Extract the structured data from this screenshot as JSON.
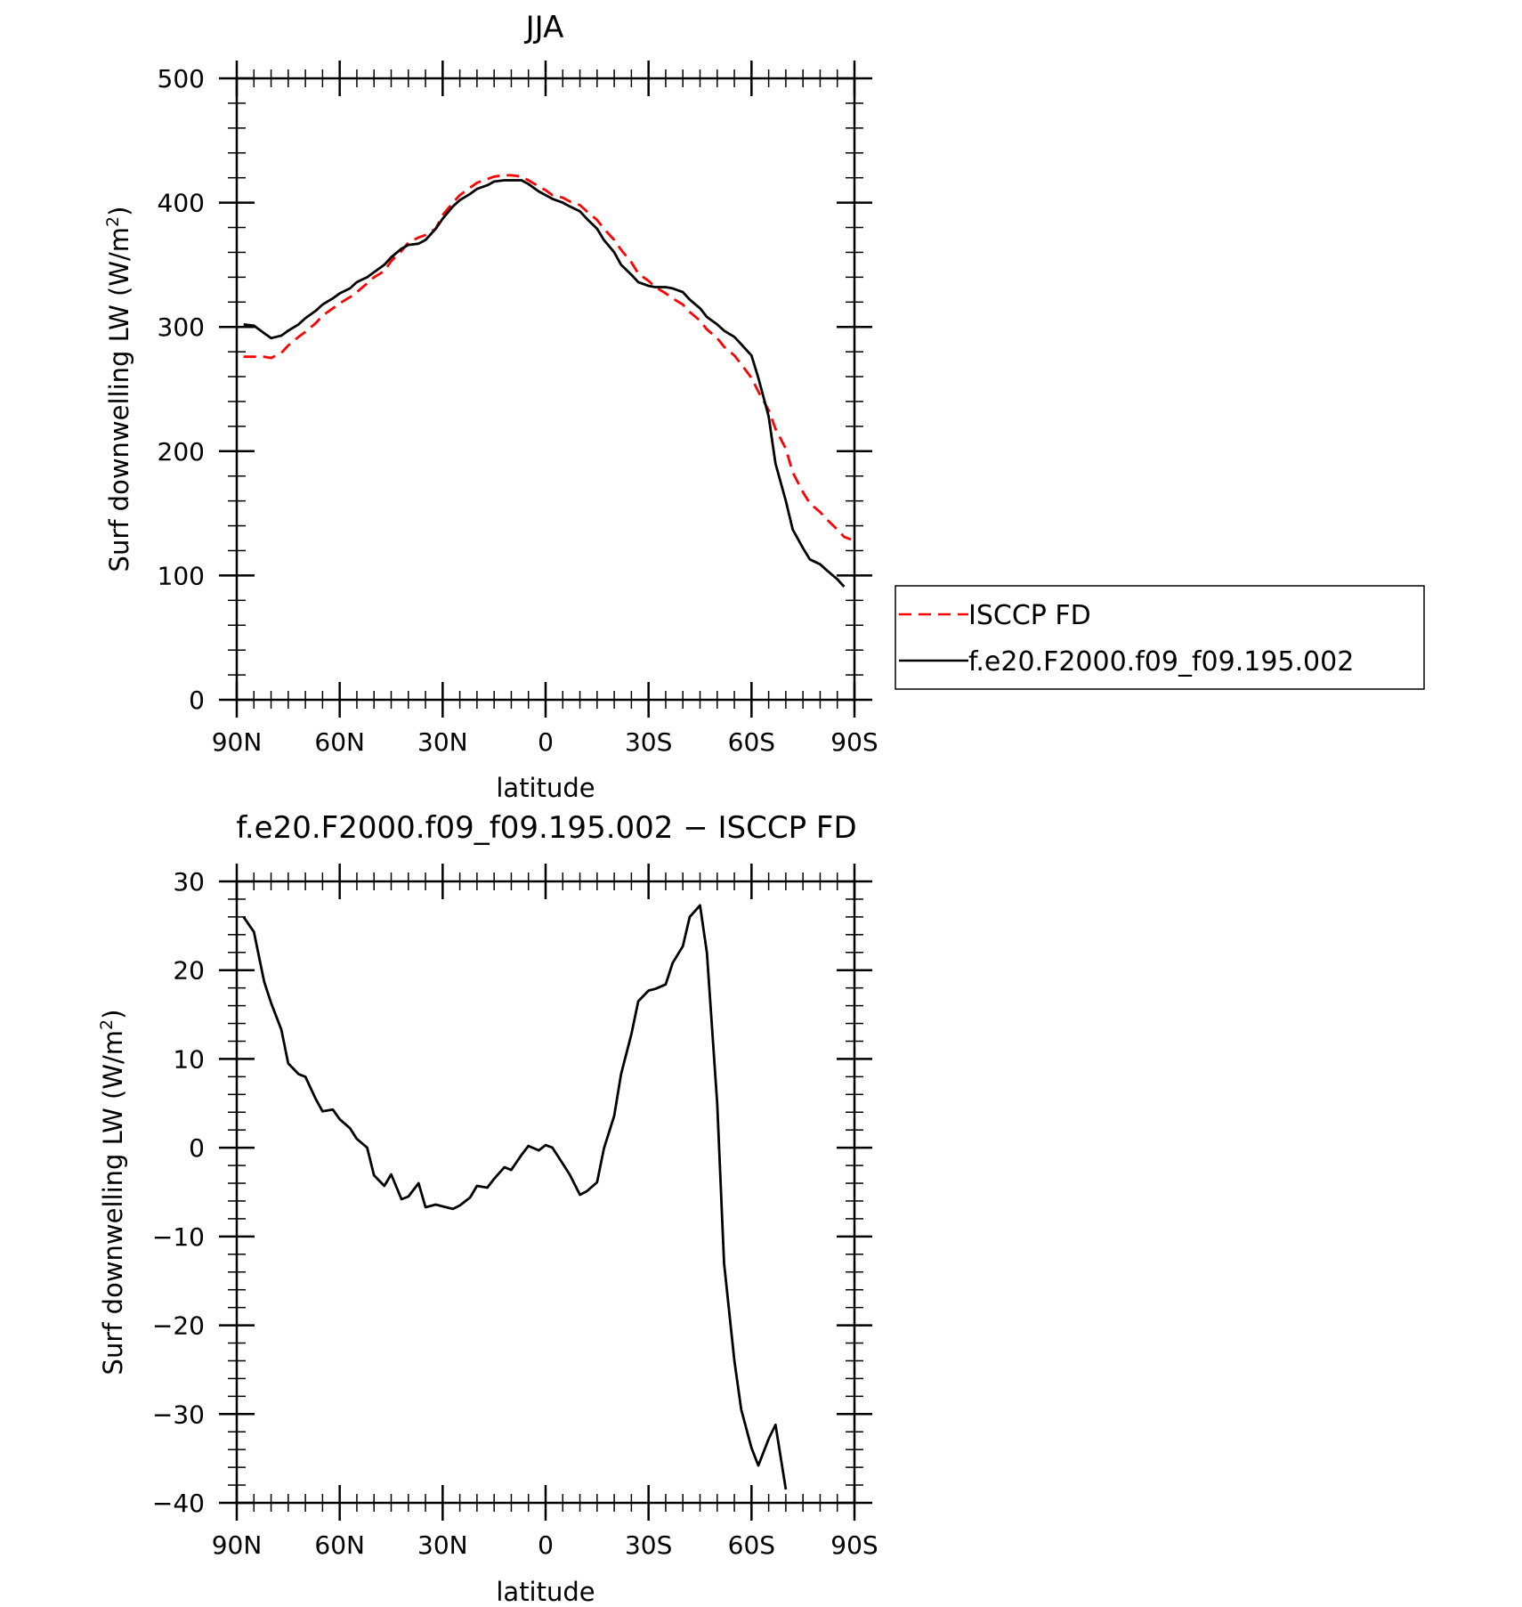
{
  "chart_data": [
    {
      "type": "line",
      "title": "JJA",
      "xlabel": "latitude",
      "ylabel": "Surf downwelling LW (W/m",
      "ylabel_sup": "2",
      "ylabel_close": ")",
      "xlim": [
        90,
        -90
      ],
      "ylim": [
        0,
        500
      ],
      "xticks": [
        90,
        60,
        30,
        0,
        -30,
        -60,
        -90
      ],
      "xtick_labels": [
        "90N",
        "60N",
        "30N",
        "0",
        "30S",
        "60S",
        "90S"
      ],
      "yticks": [
        0,
        100,
        200,
        300,
        400,
        500
      ],
      "ytick_labels": [
        "0",
        "100",
        "200",
        "300",
        "400",
        "500"
      ],
      "grid": false,
      "legend": "right",
      "series": [
        {
          "name": "ISCCP FD",
          "color": "#ff0000",
          "dash": "dashed",
          "points": [
            [
              88,
              276
            ],
            [
              85,
              276
            ],
            [
              82,
              276
            ],
            [
              80,
              275
            ],
            [
              77,
              279
            ],
            [
              75,
              285
            ],
            [
              72,
              292
            ],
            [
              70,
              296
            ],
            [
              67,
              303
            ],
            [
              65,
              309
            ],
            [
              62,
              315
            ],
            [
              60,
              319
            ],
            [
              57,
              324
            ],
            [
              55,
              328
            ],
            [
              52,
              335
            ],
            [
              50,
              340
            ],
            [
              47,
              345
            ],
            [
              45,
              353
            ],
            [
              42,
              361
            ],
            [
              40,
              368
            ],
            [
              37,
              372
            ],
            [
              35,
              374
            ],
            [
              32,
              379
            ],
            [
              30,
              390
            ],
            [
              27,
              400
            ],
            [
              25,
              406
            ],
            [
              22,
              412
            ],
            [
              20,
              416
            ],
            [
              17,
              419
            ],
            [
              15,
              421
            ],
            [
              12,
              422
            ],
            [
              10,
              422
            ],
            [
              7,
              421
            ],
            [
              5,
              418
            ],
            [
              2,
              413
            ],
            [
              0,
              410
            ],
            [
              -2,
              406
            ],
            [
              -5,
              404
            ],
            [
              -7,
              401
            ],
            [
              -10,
              398
            ],
            [
              -12,
              393
            ],
            [
              -15,
              386
            ],
            [
              -17,
              379
            ],
            [
              -20,
              370
            ],
            [
              -22,
              362
            ],
            [
              -25,
              352
            ],
            [
              -27,
              343
            ],
            [
              -30,
              337
            ],
            [
              -32,
              332
            ],
            [
              -35,
              327
            ],
            [
              -37,
              323
            ],
            [
              -40,
              318
            ],
            [
              -42,
              312
            ],
            [
              -45,
              305
            ],
            [
              -47,
              298
            ],
            [
              -50,
              291
            ],
            [
              -52,
              284
            ],
            [
              -55,
              277
            ],
            [
              -57,
              270
            ],
            [
              -60,
              259
            ],
            [
              -62,
              248
            ],
            [
              -65,
              233
            ],
            [
              -67,
              218
            ],
            [
              -70,
              202
            ],
            [
              -72,
              183
            ],
            [
              -75,
              167
            ],
            [
              -77,
              158
            ],
            [
              -80,
              151
            ],
            [
              -82,
              145
            ],
            [
              -85,
              137
            ],
            [
              -87,
              131
            ],
            [
              -89,
              129
            ]
          ]
        },
        {
          "name": "f.e20.F2000.f09_f09.195.002",
          "color": "#000000",
          "dash": "solid",
          "points": [
            [
              88,
              302
            ],
            [
              85,
              301
            ],
            [
              82,
              295
            ],
            [
              80,
              291
            ],
            [
              77,
              293
            ],
            [
              75,
              297
            ],
            [
              72,
              302
            ],
            [
              70,
              307
            ],
            [
              67,
              313
            ],
            [
              65,
              318
            ],
            [
              62,
              323
            ],
            [
              60,
              327
            ],
            [
              57,
              331
            ],
            [
              55,
              336
            ],
            [
              52,
              340
            ],
            [
              50,
              344
            ],
            [
              47,
              350
            ],
            [
              45,
              356
            ],
            [
              42,
              363
            ],
            [
              40,
              366
            ],
            [
              37,
              367
            ],
            [
              35,
              370
            ],
            [
              32,
              379
            ],
            [
              30,
              387
            ],
            [
              27,
              397
            ],
            [
              25,
              402
            ],
            [
              22,
              407
            ],
            [
              20,
              411
            ],
            [
              17,
              414
            ],
            [
              15,
              417
            ],
            [
              12,
              418
            ],
            [
              10,
              418
            ],
            [
              7,
              418
            ],
            [
              5,
              415
            ],
            [
              2,
              409
            ],
            [
              0,
              406
            ],
            [
              -2,
              403
            ],
            [
              -5,
              400
            ],
            [
              -7,
              397
            ],
            [
              -10,
              393
            ],
            [
              -12,
              387
            ],
            [
              -15,
              379
            ],
            [
              -17,
              370
            ],
            [
              -20,
              360
            ],
            [
              -22,
              350
            ],
            [
              -25,
              342
            ],
            [
              -27,
              336
            ],
            [
              -30,
              333
            ],
            [
              -32,
              332
            ],
            [
              -35,
              332
            ],
            [
              -37,
              331
            ],
            [
              -40,
              328
            ],
            [
              -42,
              322
            ],
            [
              -45,
              315
            ],
            [
              -47,
              308
            ],
            [
              -50,
              302
            ],
            [
              -52,
              297
            ],
            [
              -55,
              292
            ],
            [
              -57,
              286
            ],
            [
              -60,
              277
            ],
            [
              -62,
              259
            ],
            [
              -65,
              228
            ],
            [
              -67,
              190
            ],
            [
              -70,
              160
            ],
            [
              -72,
              137
            ],
            [
              -75,
              122
            ],
            [
              -77,
              113
            ],
            [
              -80,
              109
            ],
            [
              -82,
              104
            ],
            [
              -85,
              97
            ],
            [
              -87,
              91
            ]
          ]
        }
      ]
    },
    {
      "type": "line",
      "title": "f.e20.F2000.f09_f09.195.002 − ISCCP FD",
      "xlabel": "latitude",
      "ylabel": "Surf downwelling LW (W/m",
      "ylabel_sup": "2",
      "ylabel_close": ")",
      "xlim": [
        90,
        -90
      ],
      "ylim": [
        -40,
        30
      ],
      "xticks": [
        90,
        60,
        30,
        0,
        -30,
        -60,
        -90
      ],
      "xtick_labels": [
        "90N",
        "60N",
        "30N",
        "0",
        "30S",
        "60S",
        "90S"
      ],
      "yticks": [
        30,
        20,
        10,
        0,
        -10,
        -20,
        -30,
        -40
      ],
      "ytick_labels": [
        "30",
        "20",
        "10",
        "0",
        "−10",
        "−20",
        "−30",
        "−40"
      ],
      "grid": false,
      "series": [
        {
          "color": "#000000",
          "dash": "solid",
          "points": [
            [
              88,
              26.0
            ],
            [
              85,
              24.3
            ],
            [
              82,
              18.7
            ],
            [
              80,
              16.3
            ],
            [
              77,
              13.3
            ],
            [
              75,
              9.5
            ],
            [
              72,
              8.3
            ],
            [
              70,
              8.0
            ],
            [
              67,
              5.5
            ],
            [
              65,
              4.1
            ],
            [
              62,
              4.3
            ],
            [
              60,
              3.2
            ],
            [
              57,
              2.2
            ],
            [
              55,
              1.0
            ],
            [
              52,
              0.0
            ],
            [
              50,
              -3.1
            ],
            [
              47,
              -4.3
            ],
            [
              45,
              -3.0
            ],
            [
              42,
              -5.8
            ],
            [
              40,
              -5.5
            ],
            [
              37,
              -4.0
            ],
            [
              35,
              -6.7
            ],
            [
              32,
              -6.4
            ],
            [
              30,
              -6.6
            ],
            [
              27,
              -6.9
            ],
            [
              25,
              -6.5
            ],
            [
              22,
              -5.6
            ],
            [
              20,
              -4.3
            ],
            [
              17,
              -4.5
            ],
            [
              15,
              -3.5
            ],
            [
              12,
              -2.2
            ],
            [
              10,
              -2.5
            ],
            [
              7,
              -0.8
            ],
            [
              5,
              0.2
            ],
            [
              2,
              -0.3
            ],
            [
              0,
              0.3
            ],
            [
              -2,
              0.0
            ],
            [
              -5,
              -1.8
            ],
            [
              -7,
              -3.0
            ],
            [
              -10,
              -5.3
            ],
            [
              -12,
              -4.9
            ],
            [
              -15,
              -3.9
            ],
            [
              -17,
              -0.1
            ],
            [
              -20,
              3.6
            ],
            [
              -22,
              8.3
            ],
            [
              -25,
              12.8
            ],
            [
              -27,
              16.5
            ],
            [
              -30,
              17.7
            ],
            [
              -32,
              17.9
            ],
            [
              -35,
              18.4
            ],
            [
              -37,
              20.8
            ],
            [
              -40,
              22.7
            ],
            [
              -42,
              26.0
            ],
            [
              -45,
              27.3
            ],
            [
              -47,
              22.0
            ],
            [
              -50,
              5.0
            ],
            [
              -52,
              -13.0
            ],
            [
              -55,
              -24.0
            ],
            [
              -57,
              -29.5
            ],
            [
              -60,
              -33.8
            ],
            [
              -62,
              -35.8
            ],
            [
              -65,
              -32.8
            ],
            [
              -67,
              -31.2
            ],
            [
              -70,
              -38.5
            ]
          ]
        }
      ]
    }
  ]
}
